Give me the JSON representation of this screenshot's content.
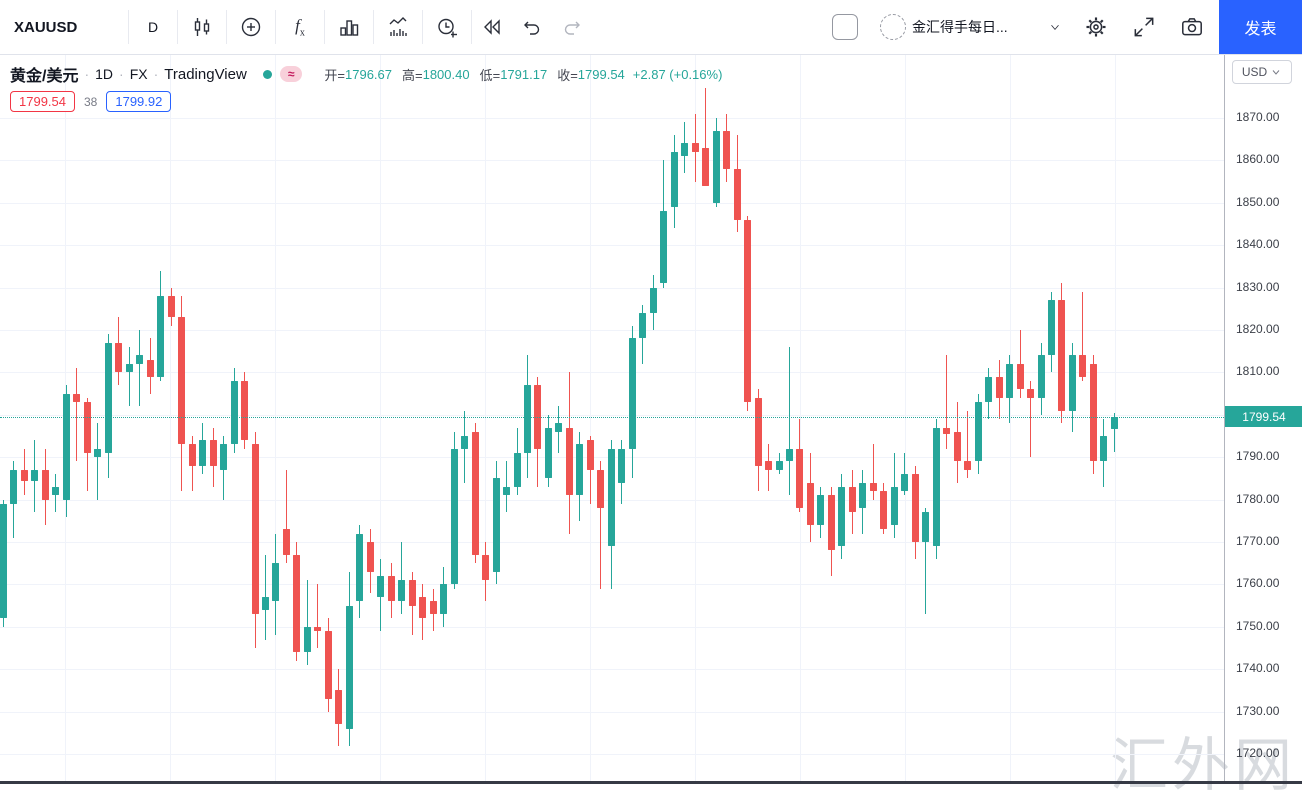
{
  "toolbar": {
    "symbol": "XAUUSD",
    "interval": "D",
    "publish_label": "发表",
    "layout_name": "金汇得手每日...",
    "icons": [
      "candlestick-style-icon",
      "add-circle-icon",
      "fx-indicators-icon",
      "columns-icon",
      "indicator-template-icon",
      "alert-clock-plus-icon",
      "replay-rewind-icon",
      "undo-icon",
      "redo-icon",
      "checkbox",
      "avatar-dashed-circle",
      "chevron-down-icon",
      "gear-icon",
      "fullscreen-icon",
      "camera-icon"
    ]
  },
  "legend": {
    "title": "黄金/美元",
    "separator": "·",
    "interval": "1D",
    "exchange": "FX",
    "provider": "TradingView",
    "delay_symbol": "≈",
    "ohlc": {
      "open_label": "开=",
      "open": "1796.67",
      "high_label": "高=",
      "high": "1800.40",
      "low_label": "低=",
      "low": "1791.17",
      "close_label": "收=",
      "close": "1799.54",
      "change": "+2.87 (+0.16%)"
    }
  },
  "quote": {
    "bid": "1799.54",
    "spread": "38",
    "ask": "1799.92"
  },
  "axis": {
    "currency": "USD",
    "labels": [
      "1870.00",
      "1860.00",
      "1850.00",
      "1840.00",
      "1830.00",
      "1820.00",
      "1810.00",
      "1790.00",
      "1780.00",
      "1770.00",
      "1760.00",
      "1750.00",
      "1740.00",
      "1730.00",
      "1720.00"
    ],
    "current_price_label": "1799.54"
  },
  "watermark": "汇外网",
  "colors": {
    "up": "#26a69a",
    "down": "#ef5350",
    "accent_blue": "#2962ff",
    "bid_red": "#f23645",
    "last_price_bg": "#26a69a",
    "grid": "#f0f3fa"
  },
  "chart_data": {
    "type": "candlestick",
    "title": "黄金/美元 (XAUUSD) 1D FX",
    "last_price": 1799.54,
    "last_candle_ohlc": {
      "open": 1796.67,
      "high": 1800.4,
      "low": 1791.17,
      "close": 1799.54,
      "change": "+2.87 (+0.16%)"
    },
    "y_axis": {
      "min_visible": 1716,
      "max_visible": 1878,
      "grid_step": 10,
      "unit": "USD",
      "grid_on": true
    },
    "x_axis": {
      "time_labels_visible": false,
      "interval": "1D"
    },
    "candles_format": [
      "open",
      "high",
      "low",
      "close"
    ],
    "candles": [
      [
        1752,
        1780,
        1750,
        1779
      ],
      [
        1779,
        1789,
        1771,
        1787
      ],
      [
        1787,
        1792,
        1781,
        1784.5
      ],
      [
        1784.5,
        1794,
        1777,
        1787
      ],
      [
        1787,
        1792,
        1774,
        1780
      ],
      [
        1781,
        1786,
        1777,
        1783
      ],
      [
        1780,
        1807,
        1776,
        1805
      ],
      [
        1805,
        1811,
        1789,
        1803
      ],
      [
        1803,
        1804,
        1782,
        1791
      ],
      [
        1790,
        1798,
        1780,
        1792
      ],
      [
        1791,
        1819,
        1785,
        1817
      ],
      [
        1817,
        1823,
        1807,
        1810
      ],
      [
        1810,
        1816,
        1802,
        1812
      ],
      [
        1812,
        1820,
        1802,
        1814
      ],
      [
        1813,
        1818,
        1805,
        1809
      ],
      [
        1809,
        1834,
        1808,
        1828
      ],
      [
        1828,
        1830,
        1821,
        1823
      ],
      [
        1823,
        1828,
        1782,
        1793
      ],
      [
        1793,
        1795,
        1782,
        1788
      ],
      [
        1788,
        1798,
        1786,
        1794
      ],
      [
        1794,
        1797,
        1783,
        1788
      ],
      [
        1787,
        1795,
        1780,
        1793
      ],
      [
        1793,
        1811,
        1791,
        1808
      ],
      [
        1808,
        1810,
        1792,
        1794
      ],
      [
        1793,
        1796,
        1745,
        1753
      ],
      [
        1754,
        1767,
        1747,
        1757
      ],
      [
        1756,
        1772,
        1748,
        1765
      ],
      [
        1773,
        1787,
        1765,
        1767
      ],
      [
        1767,
        1770,
        1742,
        1744
      ],
      [
        1744,
        1761,
        1741,
        1750
      ],
      [
        1750,
        1760,
        1745,
        1749
      ],
      [
        1749,
        1752,
        1730,
        1733
      ],
      [
        1735,
        1740,
        1722,
        1727
      ],
      [
        1726,
        1763,
        1722,
        1755
      ],
      [
        1756,
        1774,
        1752,
        1772
      ],
      [
        1770,
        1773,
        1758,
        1763
      ],
      [
        1757,
        1766,
        1749,
        1762
      ],
      [
        1762,
        1765,
        1752,
        1756
      ],
      [
        1756,
        1770,
        1753,
        1761
      ],
      [
        1761,
        1763,
        1748,
        1755
      ],
      [
        1757,
        1760,
        1747,
        1752
      ],
      [
        1756,
        1759,
        1749,
        1753
      ],
      [
        1753,
        1764,
        1750,
        1760
      ],
      [
        1760,
        1796,
        1759,
        1792
      ],
      [
        1792,
        1801,
        1784,
        1795
      ],
      [
        1796,
        1798,
        1765,
        1767
      ],
      [
        1767,
        1770,
        1756,
        1761
      ],
      [
        1763,
        1789,
        1760,
        1785
      ],
      [
        1781,
        1789,
        1777,
        1783
      ],
      [
        1783,
        1797,
        1781,
        1791
      ],
      [
        1791,
        1814,
        1785,
        1807
      ],
      [
        1807,
        1809,
        1783,
        1792
      ],
      [
        1785,
        1800,
        1783,
        1797
      ],
      [
        1796,
        1802,
        1791,
        1798
      ],
      [
        1797,
        1810,
        1772,
        1781
      ],
      [
        1781,
        1796,
        1775,
        1793
      ],
      [
        1794,
        1795,
        1779,
        1787
      ],
      [
        1787,
        1789,
        1759,
        1778
      ],
      [
        1769,
        1794,
        1759,
        1792
      ],
      [
        1784,
        1794,
        1779,
        1792
      ],
      [
        1792,
        1821,
        1785,
        1818
      ],
      [
        1818,
        1826,
        1812,
        1824
      ],
      [
        1824,
        1833,
        1820,
        1830
      ],
      [
        1831,
        1860,
        1830,
        1848
      ],
      [
        1849,
        1866,
        1844,
        1862
      ],
      [
        1861,
        1869,
        1857,
        1864
      ],
      [
        1864,
        1871,
        1855,
        1862
      ],
      [
        1863,
        1877,
        1854,
        1854
      ],
      [
        1850,
        1870,
        1849,
        1867
      ],
      [
        1867,
        1871,
        1855,
        1858
      ],
      [
        1858,
        1866,
        1843,
        1846
      ],
      [
        1846,
        1847,
        1801,
        1803
      ],
      [
        1804,
        1806,
        1782,
        1788
      ],
      [
        1789,
        1793,
        1782,
        1787
      ],
      [
        1787,
        1791,
        1786,
        1789
      ],
      [
        1789,
        1816,
        1781,
        1792
      ],
      [
        1792,
        1799,
        1777,
        1778
      ],
      [
        1784,
        1791,
        1770,
        1774
      ],
      [
        1774,
        1783,
        1771,
        1781
      ],
      [
        1781,
        1783,
        1762,
        1768
      ],
      [
        1769,
        1786,
        1766,
        1783
      ],
      [
        1783,
        1787,
        1772,
        1777
      ],
      [
        1778,
        1787,
        1772,
        1784
      ],
      [
        1784,
        1793,
        1780,
        1782
      ],
      [
        1782,
        1784,
        1772,
        1773
      ],
      [
        1774,
        1791,
        1771,
        1783
      ],
      [
        1782,
        1791,
        1781,
        1786
      ],
      [
        1786,
        1788,
        1766,
        1770
      ],
      [
        1770,
        1778,
        1753,
        1777
      ],
      [
        1769,
        1799,
        1766,
        1797
      ],
      [
        1797,
        1814,
        1792,
        1795.5
      ],
      [
        1796,
        1803,
        1784,
        1789
      ],
      [
        1789,
        1801,
        1785,
        1787
      ],
      [
        1789,
        1805,
        1786,
        1803
      ],
      [
        1803,
        1811,
        1799,
        1809
      ],
      [
        1809,
        1813,
        1799,
        1804
      ],
      [
        1804,
        1814,
        1798,
        1812
      ],
      [
        1812,
        1820,
        1804,
        1806
      ],
      [
        1806,
        1808,
        1790,
        1804
      ],
      [
        1804,
        1817,
        1800,
        1814
      ],
      [
        1814,
        1829,
        1810,
        1827
      ],
      [
        1827,
        1831,
        1798,
        1801
      ],
      [
        1801,
        1817,
        1796,
        1814
      ],
      [
        1814,
        1829,
        1808,
        1809
      ],
      [
        1812,
        1814,
        1786,
        1789
      ],
      [
        1789,
        1799,
        1783,
        1795
      ],
      [
        1796.67,
        1800.4,
        1791.17,
        1799.54
      ]
    ]
  }
}
